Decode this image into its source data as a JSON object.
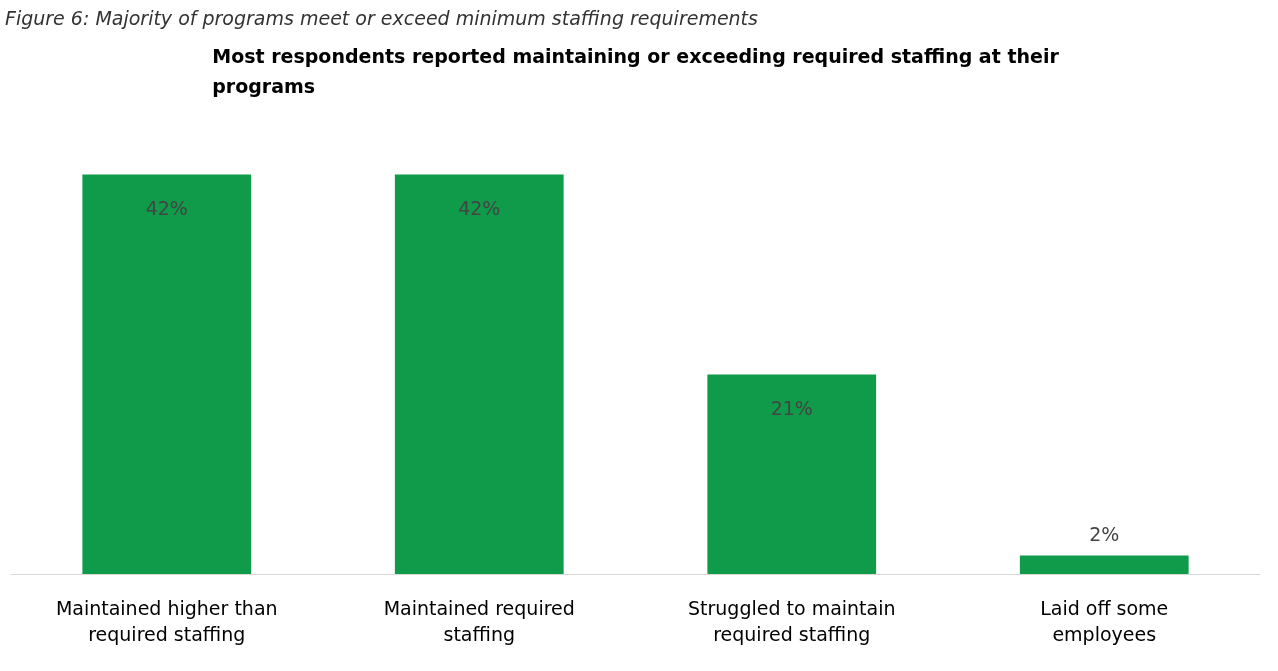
{
  "chart_data": {
    "type": "bar",
    "title": "Most respondents reported maintaining or exceeding required staffing at their programs",
    "annotations": [
      "Figure 6: Majority of programs meet or exceed minimum staffing requirements"
    ],
    "categories": [
      "Maintained higher than required staffing",
      "Maintained required staffing",
      "Struggled to maintain required staffing",
      "Laid off some employees"
    ],
    "values": [
      42,
      42,
      21,
      2
    ],
    "color": "#0f9b4a",
    "value_labels": [
      "42%",
      "42%",
      "21%",
      "2%"
    ]
  }
}
